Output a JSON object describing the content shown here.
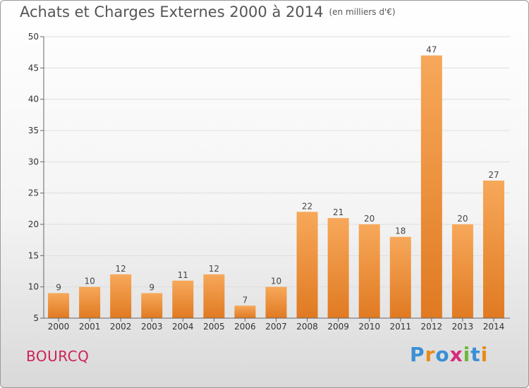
{
  "title": "Achats et Charges Externes 2000 à 2014",
  "unit_label": "(en milliers d'€)",
  "commune": "BOURCQ",
  "logo": {
    "letters": [
      "P",
      "r",
      "o",
      "x",
      "i",
      "t",
      "i"
    ],
    "colors": [
      "#3a8fd6",
      "#e88a1a",
      "#3a8fd6",
      "#d62b7d",
      "#6cb83a",
      "#3a8fd6",
      "#e88a1a"
    ]
  },
  "colors": {
    "bar_light": "#f7a85a",
    "bar_dark": "#e07a22",
    "grid": "#dddddd",
    "axis": "#666666"
  },
  "chart_data": {
    "type": "bar",
    "categories": [
      "2000",
      "2001",
      "2002",
      "2003",
      "2004",
      "2005",
      "2006",
      "2007",
      "2008",
      "2009",
      "2010",
      "2011",
      "2012",
      "2013",
      "2014"
    ],
    "values": [
      9,
      10,
      12,
      9,
      11,
      12,
      7,
      10,
      22,
      21,
      20,
      18,
      47,
      20,
      27
    ],
    "ylim": [
      5,
      50
    ],
    "yticks": [
      5,
      10,
      15,
      20,
      25,
      30,
      35,
      40,
      45,
      50
    ],
    "grid": true
  }
}
